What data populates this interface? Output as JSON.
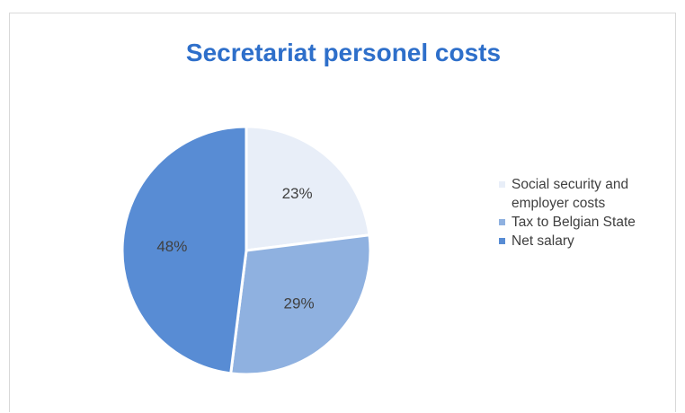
{
  "chart_data": {
    "type": "pie",
    "title": "Secretariat personel costs",
    "categories": [
      "Social security and employer costs",
      "Tax to Belgian State",
      "Net salary"
    ],
    "values": [
      23,
      29,
      48
    ],
    "labels": [
      "23%",
      "29%",
      "48%"
    ],
    "colors": [
      "#e8eef8",
      "#8fb1e0",
      "#588cd4"
    ],
    "legend_position": "right"
  }
}
